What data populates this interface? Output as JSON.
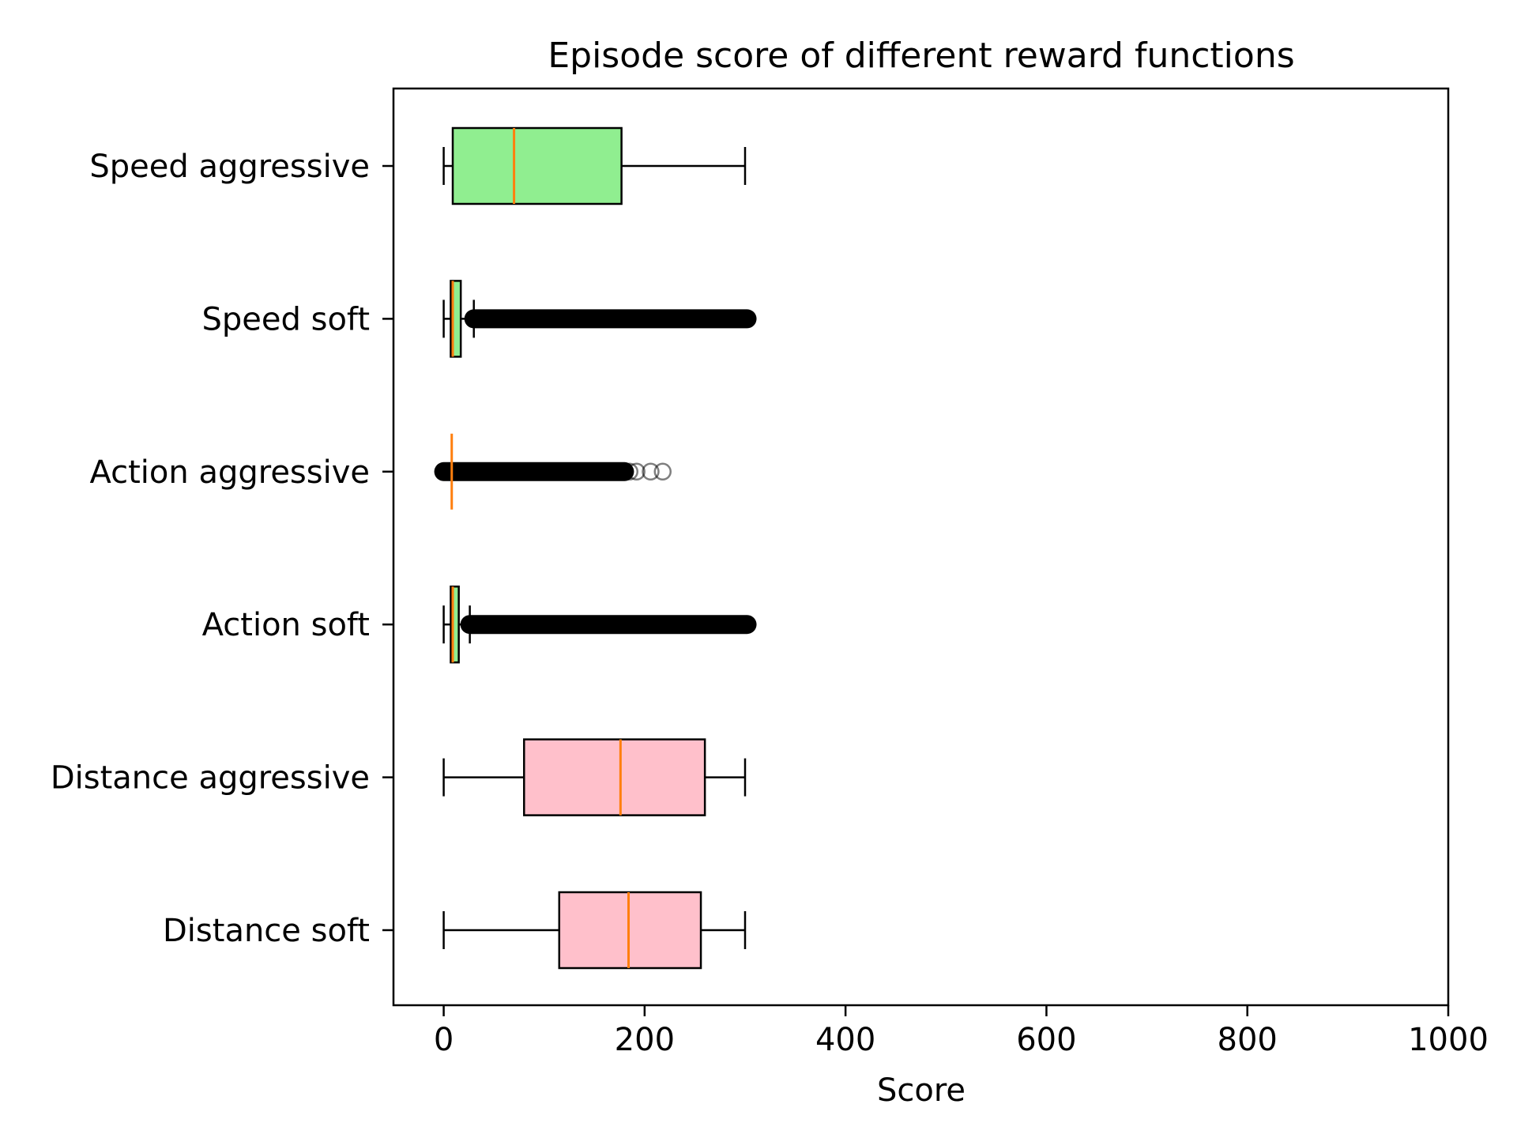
{
  "chart_data": {
    "type": "boxplot",
    "orientation": "horizontal",
    "title": "Episode score of different reward functions",
    "xlabel": "Score",
    "ylabel": "",
    "xlim": [
      -50,
      1000
    ],
    "xticks": [
      0,
      200,
      400,
      600,
      800,
      1000
    ],
    "xtick_labels": [
      "0",
      "200",
      "400",
      "600",
      "800",
      "1000"
    ],
    "grid": false,
    "legend": "none",
    "colors": {
      "speed": "#90ee90",
      "action": "#90ee90",
      "distance": "#ffc0cb",
      "median": "#ff7f0e",
      "edge": "#000000"
    },
    "series": [
      {
        "name": "Speed aggressive",
        "color": "#90ee90",
        "whisker_low": 0,
        "q1": 9,
        "median": 70,
        "q3": 177,
        "whisker_high": 300,
        "outliers": []
      },
      {
        "name": "Speed soft",
        "color": "#90ee90",
        "whisker_low": 0,
        "q1": 7,
        "median": 9,
        "q3": 17,
        "whisker_high": 30,
        "outlier_range": [
          30,
          302
        ],
        "outliers": []
      },
      {
        "name": "Action aggressive",
        "color": "#90ee90",
        "whisker_low": 8,
        "q1": 8,
        "median": 8,
        "q3": 8,
        "whisker_high": 8,
        "outlier_range": [
          0,
          180
        ],
        "outliers": [
          160,
          170,
          176,
          180,
          185,
          192,
          206,
          218
        ]
      },
      {
        "name": "Action soft",
        "color": "#90ee90",
        "whisker_low": 0,
        "q1": 7,
        "median": 9,
        "q3": 15,
        "whisker_high": 26,
        "outlier_range": [
          26,
          302
        ],
        "outliers": []
      },
      {
        "name": "Distance aggressive",
        "color": "#ffc0cb",
        "whisker_low": 0,
        "q1": 80,
        "median": 176,
        "q3": 260,
        "whisker_high": 300,
        "outliers": []
      },
      {
        "name": "Distance soft",
        "color": "#ffc0cb",
        "whisker_low": 0,
        "q1": 115,
        "median": 184,
        "q3": 256,
        "whisker_high": 300,
        "outliers": []
      }
    ]
  }
}
